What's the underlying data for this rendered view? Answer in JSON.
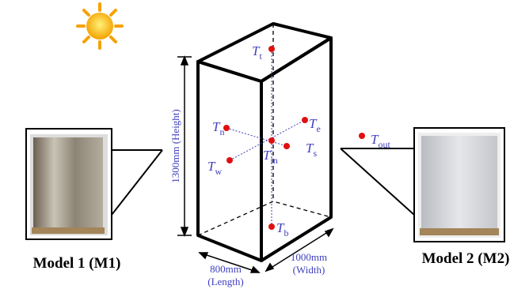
{
  "sensors": [
    {
      "symbol": "T",
      "subscript": "t"
    },
    {
      "symbol": "T",
      "subscript": "n"
    },
    {
      "symbol": "T",
      "subscript": "e"
    },
    {
      "symbol": "T",
      "subscript": "in"
    },
    {
      "symbol": "T",
      "subscript": "s"
    },
    {
      "symbol": "T",
      "subscript": "w"
    },
    {
      "symbol": "T",
      "subscript": "b"
    },
    {
      "symbol": "T",
      "subscript": "out"
    }
  ],
  "dimensions": {
    "height": "1300mm (Height)",
    "length": {
      "value": "800mm",
      "name": "(Length)"
    },
    "width": {
      "value": "1000mm",
      "name": "(Width)"
    }
  },
  "models": [
    "Model 1 (M1)",
    "Model 2 (M2)"
  ]
}
